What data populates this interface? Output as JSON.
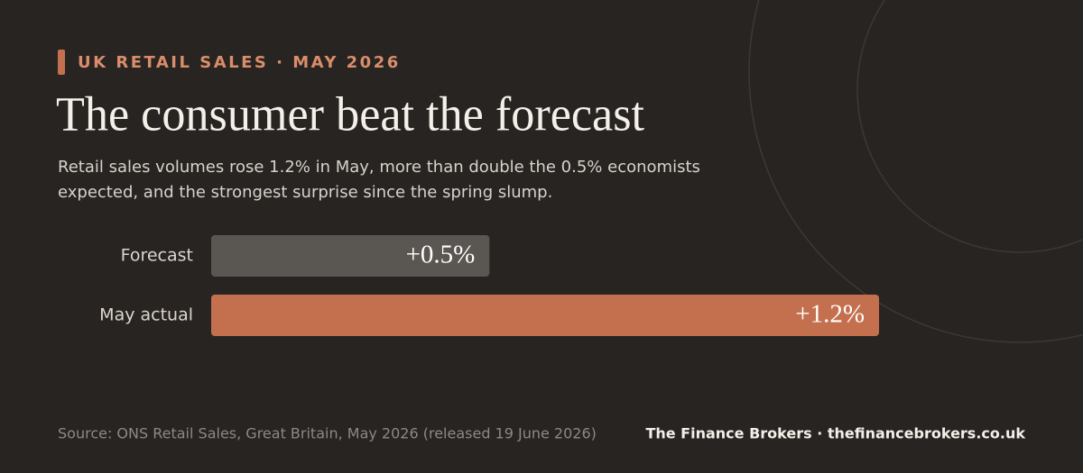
{
  "chart_data": {
    "type": "bar",
    "orientation": "horizontal",
    "eyebrow": "UK RETAIL SALES · MAY 2026",
    "title": "The consumer beat the forecast",
    "subtitle": "Retail sales volumes rose 1.2% in May, more than double the 0.5% economists expected, and the strongest surprise since the spring slump.",
    "categories": [
      "Forecast",
      "May actual"
    ],
    "values": [
      0.5,
      1.2
    ],
    "value_labels": [
      "+0.5%",
      "+1.2%"
    ],
    "colors": [
      "#5a5753",
      "#c4704f"
    ],
    "source": "Source: ONS Retail Sales, Great Britain, May 2026 (released 19 June 2026)",
    "credit": "The Finance Brokers · thefinancebrokers.co.uk"
  }
}
